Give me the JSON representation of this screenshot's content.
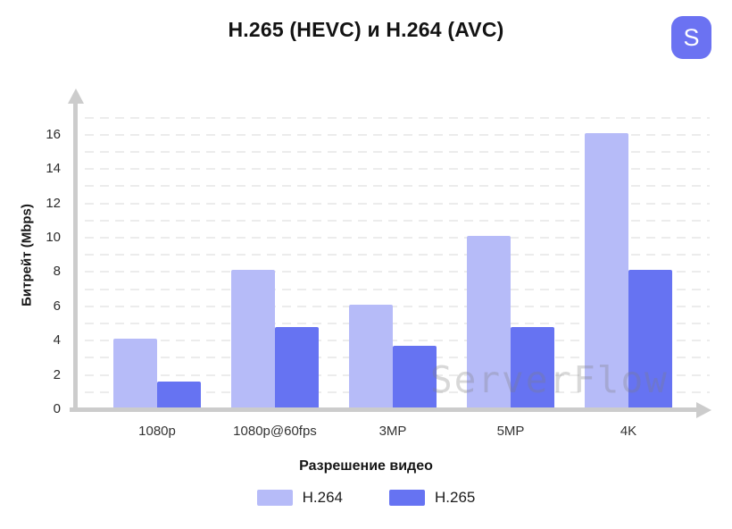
{
  "title": "H.265 (HEVC) и H.264 (AVC)",
  "badge": {
    "label": "S",
    "color": "#6b72f2"
  },
  "watermark": "ServerFlow",
  "chart_data": {
    "type": "bar",
    "title": "H.265 (HEVC) и H.264 (AVC)",
    "categories": [
      "1080p",
      "1080p@60fps",
      "3MP",
      "5MP",
      "4K"
    ],
    "series": [
      {
        "name": "H.264",
        "color": "#b6bbf8",
        "values": [
          4,
          8,
          6,
          10,
          16
        ]
      },
      {
        "name": "H.265",
        "color": "#6673f2",
        "values": [
          1.5,
          4.7,
          3.6,
          4.7,
          8
        ]
      }
    ],
    "xlabel": "Разрешение видео",
    "ylabel": "Битрейт (Mbps)",
    "ylim": [
      0,
      17
    ],
    "yticks": [
      0,
      2,
      4,
      6,
      8,
      10,
      12,
      14,
      16
    ],
    "grid": {
      "horizontal": true,
      "style": "dashed",
      "step": 1,
      "color": "#ececec"
    },
    "axis_color": "#cccccc",
    "legend_position": "bottom"
  }
}
